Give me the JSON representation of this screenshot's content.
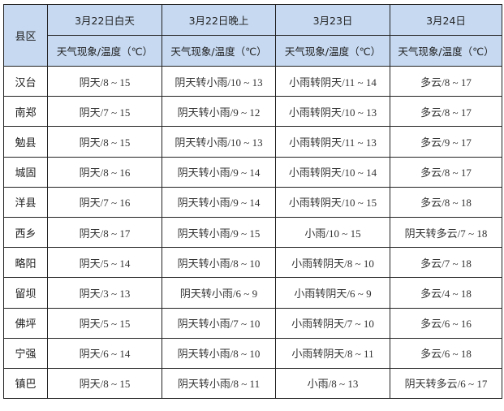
{
  "table": {
    "county_header": "县区",
    "dates": [
      "3月22日白天",
      "3月22日晚上",
      "3月23日",
      "3月24日"
    ],
    "sub_header": "天气现象/温度（℃）",
    "header_color": "#c6d9f1",
    "rows": [
      {
        "county": "汉台",
        "cells": [
          "阴天/8 ~ 15",
          "阴天转小雨/10 ~ 13",
          "小雨转阴天/11 ~ 14",
          "多云/8 ~ 17"
        ]
      },
      {
        "county": "南郑",
        "cells": [
          "阴天/7 ~ 15",
          "阴天转小雨/9 ~ 12",
          "小雨转阴天/10 ~ 13",
          "多云/8 ~ 17"
        ]
      },
      {
        "county": "勉县",
        "cells": [
          "阴天/8 ~ 15",
          "阴天转小雨/10 ~ 13",
          "小雨转阴天/11 ~ 13",
          "多云/9 ~ 17"
        ]
      },
      {
        "county": "城固",
        "cells": [
          "阴天/8 ~ 16",
          "阴天转小雨/9 ~ 14",
          "小雨转阴天/10 ~ 14",
          "多云/8 ~ 17"
        ]
      },
      {
        "county": "洋县",
        "cells": [
          "阴天/7 ~ 16",
          "阴天转小雨/9 ~ 14",
          "小雨转阴天/10 ~ 15",
          "多云/8 ~ 18"
        ]
      },
      {
        "county": "西乡",
        "cells": [
          "阴天/8 ~ 17",
          "阴天转小雨/9 ~ 15",
          "小雨/10 ~ 15",
          "阴天转多云/7 ~ 18"
        ]
      },
      {
        "county": "略阳",
        "cells": [
          "阴天/5 ~ 14",
          "阴天转小雨/8 ~ 10",
          "小雨转阴天/8 ~ 10",
          "多云/7 ~ 18"
        ]
      },
      {
        "county": "留坝",
        "cells": [
          "阴天/3 ~ 13",
          "阴天转小雨/6 ~ 9",
          "小雨转阴天/6 ~ 9",
          "多云/4 ~ 18"
        ]
      },
      {
        "county": "佛坪",
        "cells": [
          "阴天/5 ~ 15",
          "阴天转小雨/7 ~ 10",
          "小雨转阴天/7 ~ 10",
          "多云/6 ~ 16"
        ]
      },
      {
        "county": "宁强",
        "cells": [
          "阴天/6 ~ 14",
          "阴天转小雨/8 ~ 10",
          "小雨转阴天/8 ~ 11",
          "多云/6 ~ 18"
        ]
      },
      {
        "county": "镇巴",
        "cells": [
          "阴天/8 ~ 15",
          "阴天转小雨/8 ~ 11",
          "小雨/8 ~ 13",
          "阴天转多云/6 ~ 17"
        ]
      }
    ]
  }
}
